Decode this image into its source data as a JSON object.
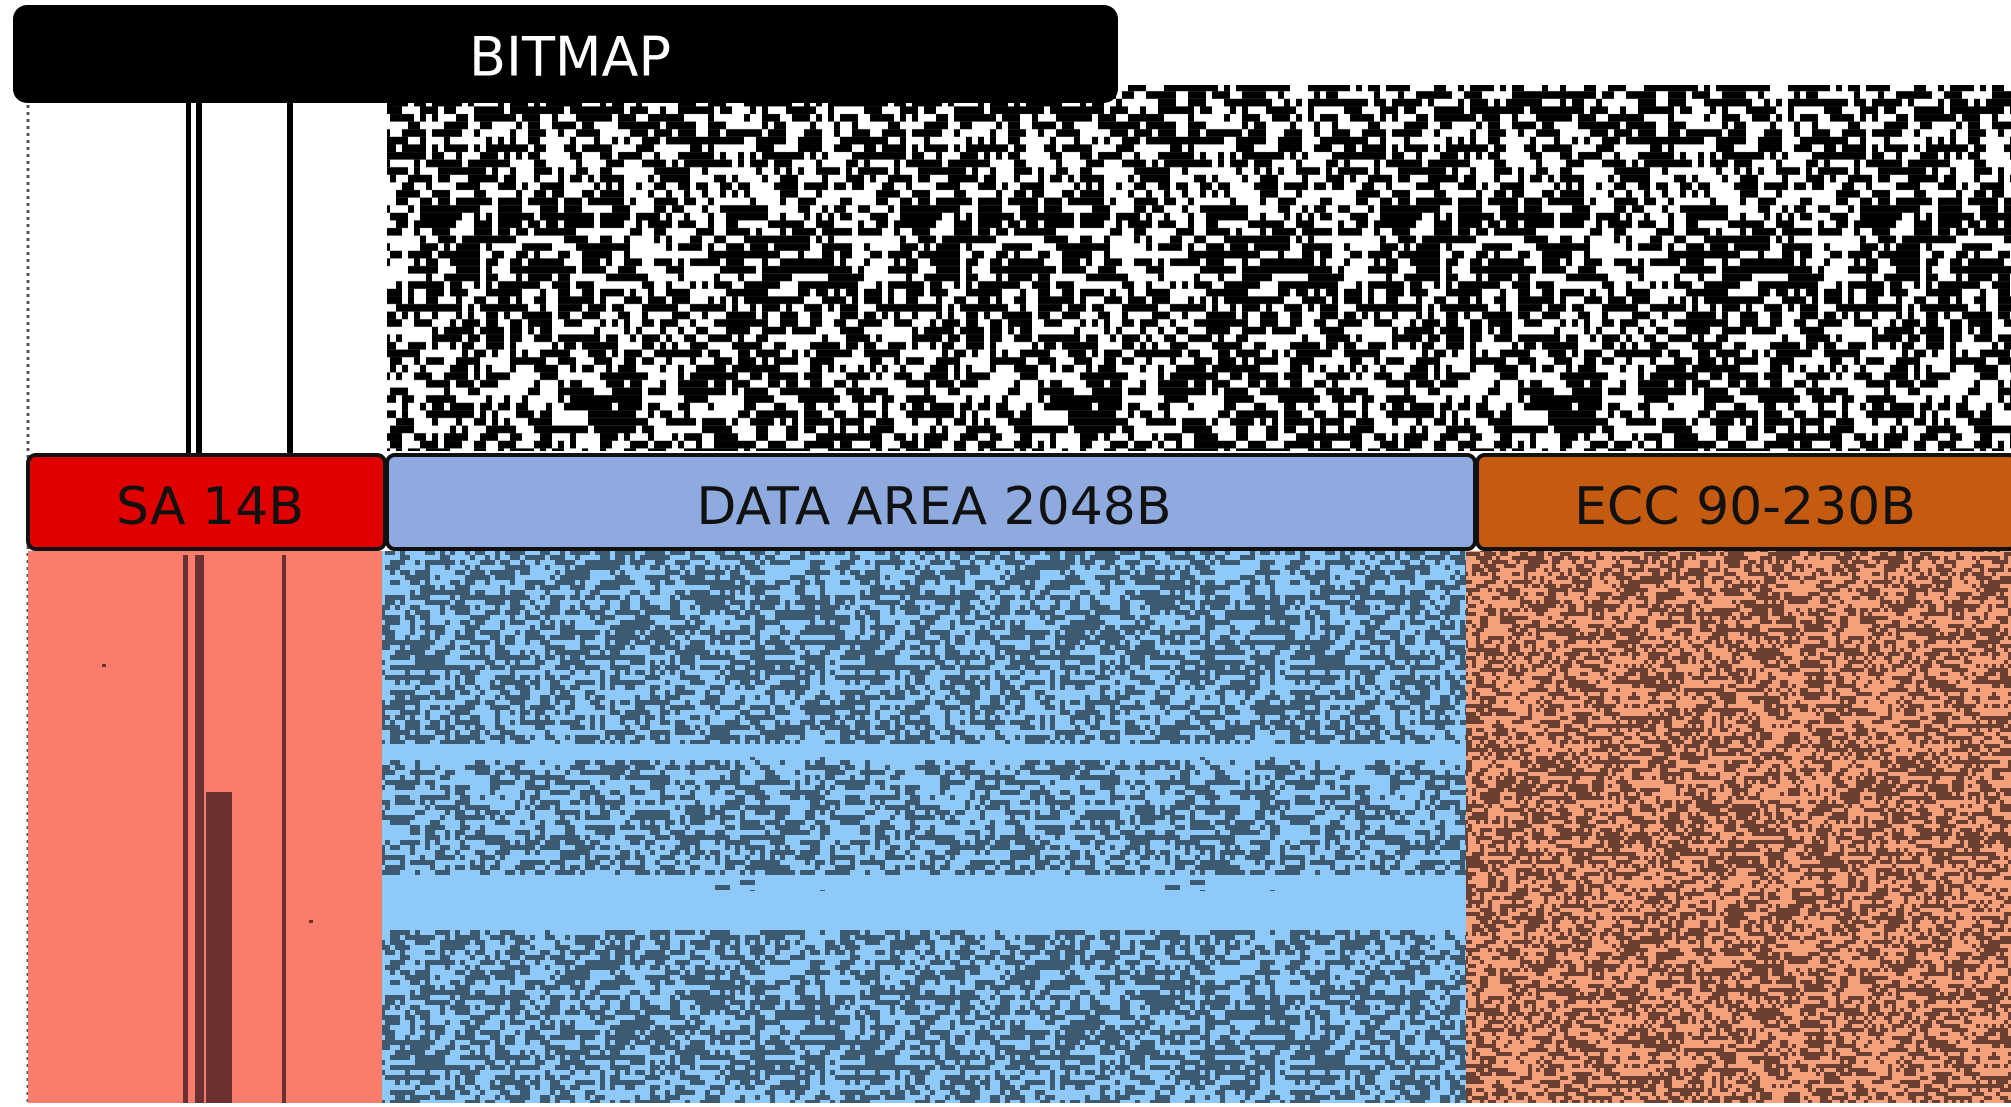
{
  "header": {
    "title": "BITMAP"
  },
  "regions": [
    {
      "label": "SA 14B"
    },
    {
      "label": "DATA AREA 2048B"
    },
    {
      "label": "ECC 90-230B"
    }
  ]
}
